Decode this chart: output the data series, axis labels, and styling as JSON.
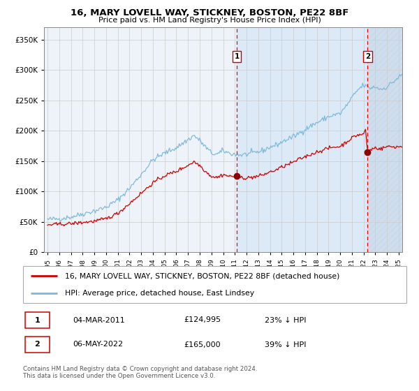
{
  "title": "16, MARY LOVELL WAY, STICKNEY, BOSTON, PE22 8BF",
  "subtitle": "Price paid vs. HM Land Registry's House Price Index (HPI)",
  "legend_line1": "16, MARY LOVELL WAY, STICKNEY, BOSTON, PE22 8BF (detached house)",
  "legend_line2": "HPI: Average price, detached house, East Lindsey",
  "annotation1_date": "04-MAR-2011",
  "annotation1_price": "£124,995",
  "annotation1_hpi": "23% ↓ HPI",
  "annotation1_year": 2011.17,
  "annotation1_value": 124995,
  "annotation2_date": "06-MAY-2022",
  "annotation2_price": "£165,000",
  "annotation2_hpi": "39% ↓ HPI",
  "annotation2_year": 2022.34,
  "annotation2_value": 165000,
  "hpi_color": "#7ab8d9",
  "price_color": "#cc0000",
  "span_bg_color": "#dce9f7",
  "hatch_bg_color": "#c8d8ea",
  "plot_facecolor": "#edf3f8",
  "grid_color": "#cccccc",
  "ylim": [
    0,
    370000
  ],
  "yticks": [
    0,
    50000,
    100000,
    150000,
    200000,
    250000,
    300000,
    350000
  ],
  "ytick_labels": [
    "£0",
    "£50K",
    "£100K",
    "£150K",
    "£200K",
    "£250K",
    "£300K",
    "£350K"
  ],
  "xstart": 1994.7,
  "xend": 2025.3,
  "footer": "Contains HM Land Registry data © Crown copyright and database right 2024.\nThis data is licensed under the Open Government Licence v3.0.",
  "hpi_waypoints": [
    [
      1995.0,
      54000
    ],
    [
      1996.0,
      55000
    ],
    [
      1997.0,
      58000
    ],
    [
      1998.0,
      63000
    ],
    [
      1999.0,
      68000
    ],
    [
      2000.0,
      74000
    ],
    [
      2001.0,
      86000
    ],
    [
      2002.0,
      105000
    ],
    [
      2003.0,
      128000
    ],
    [
      2004.0,
      152000
    ],
    [
      2005.0,
      163000
    ],
    [
      2006.0,
      172000
    ],
    [
      2007.0,
      185000
    ],
    [
      2007.5,
      192000
    ],
    [
      2008.0,
      184000
    ],
    [
      2008.5,
      173000
    ],
    [
      2009.0,
      163000
    ],
    [
      2009.5,
      161000
    ],
    [
      2010.0,
      167000
    ],
    [
      2010.5,
      163000
    ],
    [
      2011.0,
      161000
    ],
    [
      2011.5,
      160000
    ],
    [
      2012.0,
      161000
    ],
    [
      2012.5,
      163000
    ],
    [
      2013.0,
      165000
    ],
    [
      2013.5,
      168000
    ],
    [
      2014.0,
      173000
    ],
    [
      2014.5,
      176000
    ],
    [
      2015.0,
      181000
    ],
    [
      2015.5,
      186000
    ],
    [
      2016.0,
      190000
    ],
    [
      2016.5,
      196000
    ],
    [
      2017.0,
      202000
    ],
    [
      2017.5,
      208000
    ],
    [
      2018.0,
      213000
    ],
    [
      2018.5,
      218000
    ],
    [
      2019.0,
      223000
    ],
    [
      2019.5,
      226000
    ],
    [
      2020.0,
      228000
    ],
    [
      2020.5,
      240000
    ],
    [
      2021.0,
      254000
    ],
    [
      2021.5,
      267000
    ],
    [
      2022.0,
      275000
    ],
    [
      2022.5,
      270000
    ],
    [
      2023.0,
      272000
    ],
    [
      2023.5,
      268000
    ],
    [
      2024.0,
      272000
    ],
    [
      2024.5,
      280000
    ],
    [
      2025.0,
      288000
    ],
    [
      2025.3,
      292000
    ]
  ],
  "price_waypoints": [
    [
      1995.0,
      45000
    ],
    [
      1996.0,
      46000
    ],
    [
      1997.0,
      47000
    ],
    [
      1998.0,
      49000
    ],
    [
      1999.0,
      51000
    ],
    [
      2000.0,
      55000
    ],
    [
      2001.0,
      64000
    ],
    [
      2002.0,
      80000
    ],
    [
      2003.0,
      97000
    ],
    [
      2004.0,
      114000
    ],
    [
      2005.0,
      126000
    ],
    [
      2006.0,
      133000
    ],
    [
      2007.0,
      143000
    ],
    [
      2007.5,
      149000
    ],
    [
      2008.0,
      143000
    ],
    [
      2008.5,
      133000
    ],
    [
      2009.0,
      125000
    ],
    [
      2009.5,
      123000
    ],
    [
      2010.0,
      128000
    ],
    [
      2010.5,
      125000
    ],
    [
      2011.0,
      124500
    ],
    [
      2011.17,
      124995
    ],
    [
      2011.5,
      123500
    ],
    [
      2012.0,
      122000
    ],
    [
      2012.5,
      123500
    ],
    [
      2013.0,
      125000
    ],
    [
      2013.5,
      128000
    ],
    [
      2014.0,
      132000
    ],
    [
      2014.5,
      135000
    ],
    [
      2015.0,
      140000
    ],
    [
      2015.5,
      144000
    ],
    [
      2016.0,
      148000
    ],
    [
      2016.5,
      153000
    ],
    [
      2017.0,
      157000
    ],
    [
      2017.5,
      161000
    ],
    [
      2018.0,
      165000
    ],
    [
      2018.5,
      168000
    ],
    [
      2019.0,
      171000
    ],
    [
      2019.5,
      173000
    ],
    [
      2020.0,
      174000
    ],
    [
      2020.5,
      181000
    ],
    [
      2021.0,
      188000
    ],
    [
      2021.5,
      193000
    ],
    [
      2022.0,
      194000
    ],
    [
      2022.15,
      204000
    ],
    [
      2022.34,
      165000
    ],
    [
      2022.5,
      168000
    ],
    [
      2023.0,
      172000
    ],
    [
      2023.5,
      170000
    ],
    [
      2024.0,
      174000
    ],
    [
      2024.5,
      173500
    ],
    [
      2025.0,
      173500
    ],
    [
      2025.3,
      174000
    ]
  ]
}
